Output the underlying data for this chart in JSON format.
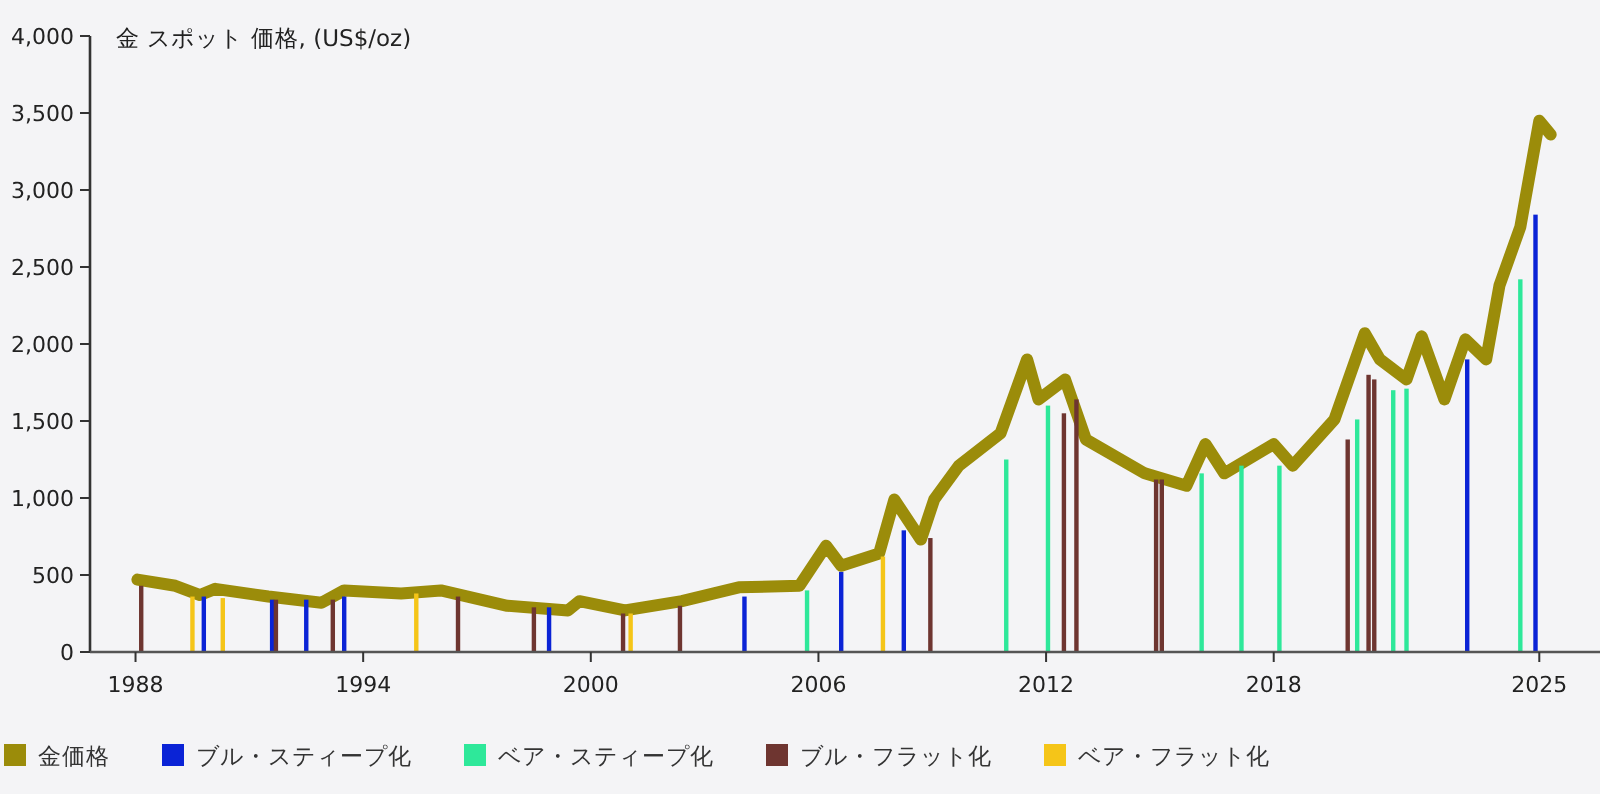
{
  "chart_data": {
    "type": "line",
    "ylabel": "金 スポット 価格, (US$/oz)",
    "xlim": [
      1986.8,
      2026.6
    ],
    "xticks": [
      1988,
      1994,
      2000,
      2006,
      2012,
      2018,
      2025
    ],
    "ylim": [
      0,
      4000
    ],
    "yticks": [
      {
        "value": 0,
        "label": "0"
      },
      {
        "value": 500,
        "label": "500"
      },
      {
        "value": 1000,
        "label": "1,000"
      },
      {
        "value": 1500,
        "label": "1,500"
      },
      {
        "value": 2000,
        "label": "2,000"
      },
      {
        "value": 2500,
        "label": "2,500"
      },
      {
        "value": 3000,
        "label": "3,000"
      },
      {
        "value": 3500,
        "label": "3,500"
      },
      {
        "value": 4000,
        "label": "4,000"
      }
    ],
    "legend": "bottom",
    "series": [
      {
        "name": "金価格",
        "color": "#9b8c0a",
        "x": [
          1988.05,
          1989.05,
          1989.7,
          1990.1,
          1991.5,
          1992.9,
          1993.5,
          1995.0,
          1996.05,
          1997.8,
          1999.4,
          1999.7,
          2000.9,
          2002.4,
          2003.9,
          2005.5,
          2006.2,
          2006.6,
          2007.6,
          2008.0,
          2008.7,
          2009.05,
          2009.7,
          2010.8,
          2011.5,
          2011.8,
          2012.5,
          2013.05,
          2014.6,
          2015.7,
          2016.2,
          2016.7,
          2018.0,
          2018.5,
          2019.6,
          2020.4,
          2020.8,
          2021.5,
          2021.9,
          2022.5,
          2023.05,
          2023.6,
          2023.95,
          2024.5,
          2025.0,
          2025.3
        ],
        "values": [
          470,
          430,
          370,
          410,
          360,
          320,
          400,
          380,
          400,
          300,
          270,
          330,
          270,
          330,
          420,
          430,
          690,
          560,
          640,
          990,
          730,
          990,
          1210,
          1420,
          1900,
          1640,
          1770,
          1380,
          1160,
          1080,
          1350,
          1160,
          1350,
          1210,
          1510,
          2070,
          1900,
          1770,
          2050,
          1640,
          2030,
          1900,
          2380,
          2760,
          3450,
          3360
        ]
      },
      {
        "name": "ブル・スティープ化",
        "type": "bar",
        "color": "#0a23d6",
        "x": [
          1989.8,
          1991.6,
          1992.5,
          1993.5,
          1998.9,
          2004.05,
          2006.6,
          2008.25,
          2023.1,
          2024.9
        ],
        "values": [
          360,
          340,
          340,
          360,
          290,
          360,
          520,
          790,
          1900,
          2840
        ]
      },
      {
        "name": "ベア・スティープ化",
        "type": "bar",
        "color": "#2ee89a",
        "x": [
          2005.7,
          2010.95,
          2012.05,
          2016.1,
          2017.15,
          2018.15,
          2020.2,
          2021.15,
          2021.5,
          2024.5
        ],
        "values": [
          400,
          1250,
          1600,
          1160,
          1210,
          1210,
          1510,
          1700,
          1710,
          2420
        ]
      },
      {
        "name": "ブル・フラット化",
        "type": "bar",
        "color": "#6e3530",
        "x": [
          1988.15,
          1991.7,
          1993.2,
          1996.5,
          1998.5,
          2000.85,
          2002.35,
          2008.95,
          2012.47,
          2012.8,
          2014.9,
          2015.05,
          2019.95,
          2020.5,
          2020.65
        ],
        "values": [
          430,
          340,
          340,
          360,
          290,
          250,
          300,
          740,
          1550,
          1640,
          1120,
          1120,
          1380,
          1800,
          1770
        ]
      },
      {
        "name": "ベア・フラット化",
        "type": "bar",
        "color": "#f5c518",
        "x": [
          1989.5,
          1990.3,
          1995.4,
          2001.05,
          2007.7
        ],
        "values": [
          360,
          350,
          380,
          250,
          620
        ]
      }
    ]
  }
}
